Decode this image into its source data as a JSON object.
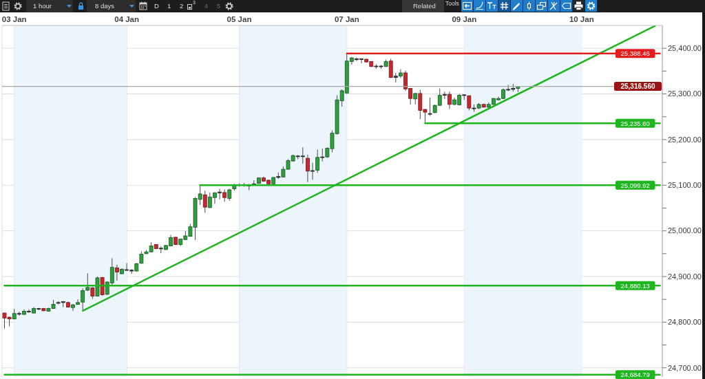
{
  "chart_data": {
    "type": "candlestick",
    "categories": [
      null,
      null,
      "03 Jan",
      null,
      null,
      null,
      null,
      null,
      null,
      null,
      null,
      null,
      null,
      null,
      null,
      null,
      null,
      null,
      null,
      null,
      null,
      null,
      null,
      null,
      null,
      "04 Jan",
      null,
      null,
      null,
      null,
      null,
      null,
      null,
      null,
      null,
      null,
      null,
      null,
      null,
      null,
      null,
      null,
      null,
      null,
      null,
      null,
      null,
      null,
      "05 Jan",
      null,
      null,
      null,
      null,
      null,
      null,
      null,
      null,
      null,
      null,
      null,
      null,
      null,
      null,
      null,
      null,
      null,
      null,
      null,
      null,
      null,
      "07 Jan",
      null,
      null,
      null,
      null,
      null,
      null,
      null,
      null,
      null,
      null,
      null,
      null,
      null,
      null,
      null,
      null,
      null,
      null,
      null,
      null,
      null,
      null,
      null,
      "09 Jan",
      null,
      null,
      null,
      null,
      null,
      null,
      null,
      null,
      null,
      null,
      null,
      null,
      null,
      null,
      null,
      null,
      null,
      null,
      null,
      null,
      null,
      null,
      null,
      "10 Jan",
      null,
      null,
      null,
      null,
      null,
      null,
      null,
      null,
      null,
      null,
      null,
      null,
      null,
      null,
      null,
      null
    ],
    "ohlc": [
      [
        24820,
        24821,
        24786,
        24809
      ],
      [
        24811,
        24812,
        24791,
        24807
      ],
      [
        24807,
        24829,
        24806,
        24819
      ],
      [
        24818,
        24823,
        24814,
        24819
      ],
      [
        24817,
        24828,
        24816,
        24824
      ],
      [
        24823,
        24828,
        24820,
        24824
      ],
      [
        24820,
        24833,
        24819,
        24830
      ],
      [
        24829,
        24831,
        24826,
        24830
      ],
      [
        24830,
        24831,
        24824,
        24825
      ],
      [
        24824,
        24832,
        24823,
        24830
      ],
      [
        24830,
        24849,
        24829,
        24839
      ],
      [
        24842,
        24846,
        24839,
        24843
      ],
      [
        24845,
        24846,
        24833,
        24843
      ],
      [
        24843,
        24845,
        24832,
        24833
      ],
      [
        24832,
        24840,
        24825,
        24838
      ],
      [
        24839,
        24850,
        24838,
        24843
      ],
      [
        24844,
        24874,
        24825,
        24869
      ],
      [
        24870,
        24907,
        24868,
        24876
      ],
      [
        24875,
        24877,
        24851,
        24857
      ],
      [
        24857,
        24900,
        24856,
        24897
      ],
      [
        24898,
        24899,
        24858,
        24860
      ],
      [
        24861,
        24889,
        24860,
        24888
      ],
      [
        24886,
        24940,
        24882,
        24920
      ],
      [
        24919,
        24926,
        24891,
        24910
      ],
      [
        24906,
        24918,
        24905,
        24916
      ],
      [
        24914,
        24929,
        24912,
        24915
      ],
      [
        24914,
        24916,
        24906,
        24912
      ],
      [
        24912,
        24930,
        24911,
        24928
      ],
      [
        24929,
        24955,
        24928,
        24949
      ],
      [
        24950,
        24958,
        24949,
        24954
      ],
      [
        24954,
        24975,
        24953,
        24967
      ],
      [
        24970,
        24971,
        24960,
        24961
      ],
      [
        24961,
        24966,
        24951,
        24962
      ],
      [
        24959,
        24969,
        24958,
        24968
      ],
      [
        24967,
        24991,
        24966,
        24985
      ],
      [
        24986,
        24987,
        24969,
        24970
      ],
      [
        24970,
        24983,
        24967,
        24982
      ],
      [
        24981,
        25000,
        24980,
        24989
      ],
      [
        24988,
        25015,
        24987,
        25009
      ],
      [
        25008,
        25074,
        24980,
        25071
      ],
      [
        25069,
        25099.92,
        25057,
        25081
      ],
      [
        25079,
        25088,
        25040,
        25052
      ],
      [
        25051,
        25084,
        25050,
        25074
      ],
      [
        25073,
        25085,
        25059,
        25083
      ],
      [
        25083,
        25092,
        25069,
        25085
      ],
      [
        25084,
        25091,
        25064,
        25073
      ],
      [
        25071,
        25092,
        25066,
        25090
      ],
      [
        25092,
        25103,
        25088,
        25100
      ],
      [
        25100,
        25104,
        25097,
        25101
      ],
      [
        25101,
        25105,
        25097,
        25100
      ],
      [
        25100,
        25103,
        25089,
        25099
      ],
      [
        25101,
        25111,
        25099,
        25103
      ],
      [
        25104,
        25117,
        25103,
        25116
      ],
      [
        25116,
        25119,
        25108,
        25109
      ],
      [
        25111,
        25112,
        25102,
        25103
      ],
      [
        25103,
        25118,
        25102,
        25117
      ],
      [
        25117,
        25128,
        25114,
        25119
      ],
      [
        25118,
        25141,
        25117,
        25135
      ],
      [
        25135,
        25157,
        25134,
        25154
      ],
      [
        25153,
        25167,
        25152,
        25165
      ],
      [
        25164,
        25166,
        25157,
        25163
      ],
      [
        25163,
        25183,
        25147,
        25164
      ],
      [
        25159,
        25167,
        25107,
        25131
      ],
      [
        25131,
        25149,
        25112,
        25132
      ],
      [
        25133,
        25178,
        25127,
        25161
      ],
      [
        25161,
        25180,
        25152,
        25162
      ],
      [
        25162,
        25183,
        25160,
        25181
      ],
      [
        25180,
        25220,
        25172,
        25214
      ],
      [
        25213,
        25297,
        25211,
        25287
      ],
      [
        25285,
        25310,
        25272,
        25307
      ],
      [
        25302,
        25388.46,
        25300,
        25372
      ],
      [
        25371,
        25381,
        25364,
        25379
      ],
      [
        25377,
        25380,
        25372,
        25375
      ],
      [
        25377,
        25378,
        25367,
        25376
      ],
      [
        25376,
        25377,
        25369,
        25370
      ],
      [
        25371,
        25372,
        25359,
        25360
      ],
      [
        25360,
        25365,
        25355,
        25361
      ],
      [
        25361,
        25363,
        25355,
        25360
      ],
      [
        25360,
        25375,
        25359,
        25371
      ],
      [
        25372,
        25377,
        25335,
        25336
      ],
      [
        25336,
        25346,
        25325,
        25339
      ],
      [
        25339,
        25354,
        25335,
        25346
      ],
      [
        25346,
        25351,
        25307,
        25311
      ],
      [
        25312,
        25313,
        25277,
        25290
      ],
      [
        25289,
        25302,
        25277,
        25301
      ],
      [
        25301,
        25309,
        25245,
        25264
      ],
      [
        25266,
        25267,
        25235.6,
        25260
      ],
      [
        25257,
        25292,
        25252,
        25256
      ],
      [
        25259,
        25277,
        25258,
        25275
      ],
      [
        25275,
        25312,
        25274,
        25297
      ],
      [
        25297,
        25305,
        25289,
        25299
      ],
      [
        25299,
        25305,
        25267,
        25277
      ],
      [
        25277,
        25292,
        25275,
        25287
      ],
      [
        25276,
        25300,
        25275,
        25297
      ],
      [
        25298,
        25299,
        25287,
        25297
      ],
      [
        25296,
        25297,
        25264,
        25269
      ],
      [
        25268,
        25277,
        25261,
        25269
      ],
      [
        25269,
        25280,
        25267,
        25277
      ],
      [
        25277,
        25279,
        25270,
        25271
      ],
      [
        25271,
        25281,
        25269,
        25277
      ],
      [
        25277,
        25291,
        25276,
        25290
      ],
      [
        25287,
        25294,
        25286,
        25290
      ],
      [
        25290,
        25312,
        25289,
        25309
      ],
      [
        25309,
        25320,
        25306,
        25310
      ],
      [
        25310,
        25322,
        25305,
        25312
      ],
      [
        25312,
        25317,
        25304,
        25316.56
      ],
      null,
      null,
      null,
      null,
      null,
      null,
      null,
      null,
      null,
      null,
      null,
      null,
      null,
      null,
      null,
      null,
      null,
      null,
      null,
      null,
      null,
      null,
      null,
      null,
      null,
      null,
      null,
      null,
      null
    ],
    "colors": [
      "#c8282d",
      "#c8282d",
      "#2e9e3e",
      "#404040",
      "#2e9e3e",
      "#404040",
      "#2e9e3e",
      "#404040",
      "#c8282d",
      "#2e9e3e",
      "#2e9e3e",
      "#404040",
      "#404040",
      "#c8282d",
      "#2e9e3e",
      "#2e9e3e",
      "#2e9e3e",
      "#2e9e3e",
      "#c8282d",
      "#2e9e3e",
      "#c8282d",
      "#2e9e3e",
      "#2e9e3e",
      "#c8282d",
      "#2e9e3e",
      "#404040",
      "#404040",
      "#2e9e3e",
      "#2e9e3e",
      "#2e9e3e",
      "#2e9e3e",
      "#c8282d",
      "#404040",
      "#2e9e3e",
      "#2e9e3e",
      "#c8282d",
      "#2e9e3e",
      "#2e9e3e",
      "#2e9e3e",
      "#2e9e3e",
      "#2e9e3e",
      "#c8282d",
      "#2e9e3e",
      "#2e9e3e",
      "#404040",
      "#c8282d",
      "#2e9e3e",
      "#2e9e3e",
      "#404040",
      "#404040",
      "#404040",
      "#404040",
      "#2e9e3e",
      "#c8282d",
      "#c8282d",
      "#2e9e3e",
      "#404040",
      "#2e9e3e",
      "#2e9e3e",
      "#2e9e3e",
      "#404040",
      "#404040",
      "#c8282d",
      "#404040",
      "#2e9e3e",
      "#404040",
      "#2e9e3e",
      "#2e9e3e",
      "#2e9e3e",
      "#2e9e3e",
      "#2e9e3e",
      "#2e9e3e",
      "#404040",
      "#404040",
      "#c8282d",
      "#c8282d",
      "#404040",
      "#404040",
      "#2e9e3e",
      "#c8282d",
      "#404040",
      "#2e9e3e",
      "#c8282d",
      "#c8282d",
      "#2e9e3e",
      "#c8282d",
      "#c8282d",
      "#404040",
      "#2e9e3e",
      "#2e9e3e",
      "#404040",
      "#c8282d",
      "#2e9e3e",
      "#2e9e3e",
      "#404040",
      "#c8282d",
      "#404040",
      "#2e9e3e",
      "#c8282d",
      "#2e9e3e",
      "#2e9e3e",
      "#2e9e3e",
      "#2e9e3e",
      "#404040",
      "#404040",
      "#2e9e3e",
      null,
      null,
      null,
      null,
      null,
      null,
      null,
      null,
      null,
      null,
      null,
      null,
      null,
      null,
      null,
      null,
      null,
      null,
      null,
      null,
      null,
      null,
      null,
      null,
      null,
      null,
      null,
      null,
      null
    ],
    "series": [
      {
        "type": "line",
        "color": "#1fb51f",
        "values": [
          null,
          null,
          null,
          null,
          null,
          null,
          null,
          null,
          null,
          null,
          null,
          null,
          null,
          null,
          null,
          null,
          24825,
          null,
          null,
          null,
          null,
          null,
          null,
          null,
          null,
          null,
          null,
          null,
          null,
          null,
          null,
          null,
          null,
          null,
          null,
          null,
          null,
          null,
          null,
          null,
          null,
          null,
          null,
          null,
          null,
          null,
          null,
          null,
          null,
          null,
          null,
          null,
          null,
          null,
          null,
          null,
          null,
          null,
          null,
          null,
          null,
          null,
          null,
          null,
          null,
          null,
          null,
          null,
          null,
          null,
          null,
          null,
          null,
          null,
          null,
          null,
          null,
          null,
          null,
          null,
          null,
          null,
          null,
          null,
          null,
          null,
          null,
          null,
          null,
          null,
          null,
          null,
          null,
          null,
          null,
          null,
          null,
          null,
          null,
          null,
          null,
          null,
          null,
          null,
          null,
          null,
          null,
          null,
          null,
          null,
          null,
          null,
          null,
          null,
          null,
          null,
          null,
          null,
          null,
          null,
          null,
          null,
          null,
          null,
          null,
          null,
          null,
          null,
          null,
          null,
          null,
          null,
          null,
          25449,
          null
        ]
      },
      {
        "type": "line",
        "color": "#e41c1c",
        "values": [
          null,
          null,
          null,
          null,
          null,
          null,
          null,
          null,
          null,
          null,
          null,
          null,
          null,
          null,
          null,
          null,
          null,
          null,
          null,
          null,
          null,
          null,
          null,
          null,
          null,
          null,
          null,
          null,
          null,
          null,
          null,
          null,
          null,
          null,
          null,
          null,
          null,
          null,
          null,
          null,
          null,
          null,
          null,
          null,
          null,
          null,
          null,
          null,
          null,
          null,
          null,
          null,
          null,
          null,
          null,
          null,
          null,
          null,
          null,
          null,
          null,
          null,
          null,
          null,
          null,
          null,
          null,
          null,
          null,
          null,
          25388.46,
          null,
          null,
          null,
          null,
          null,
          null,
          null,
          null,
          null,
          null,
          null,
          null,
          null,
          null,
          null,
          null,
          null,
          null,
          null,
          null,
          null,
          null,
          null,
          null,
          null,
          null,
          null,
          null,
          null,
          null,
          null,
          null,
          null,
          null,
          null,
          null,
          null,
          null,
          null,
          null,
          null,
          null,
          null,
          null,
          null,
          null,
          null,
          null,
          null,
          null,
          null,
          null,
          null,
          null,
          null,
          null,
          null,
          null,
          null,
          null,
          null,
          null,
          null,
          25388.46
        ],
        "value_labels": [
          null,
          null,
          null,
          null,
          null,
          null,
          null,
          null,
          null,
          null,
          null,
          null,
          null,
          null,
          null,
          null,
          null,
          null,
          null,
          null,
          null,
          null,
          null,
          null,
          null,
          null,
          null,
          null,
          null,
          null,
          null,
          null,
          null,
          null,
          null,
          null,
          null,
          null,
          null,
          null,
          null,
          null,
          null,
          null,
          null,
          null,
          null,
          null,
          null,
          null,
          null,
          null,
          null,
          null,
          null,
          null,
          null,
          null,
          null,
          null,
          null,
          null,
          null,
          null,
          null,
          null,
          null,
          null,
          null,
          null,
          null,
          null,
          null,
          null,
          null,
          null,
          null,
          null,
          null,
          null,
          null,
          null,
          null,
          null,
          null,
          null,
          null,
          null,
          null,
          null,
          null,
          null,
          null,
          null,
          null,
          null,
          null,
          null,
          null,
          null,
          null,
          null,
          null,
          null,
          null,
          null,
          null,
          null,
          null,
          null,
          null,
          null,
          null,
          null,
          null,
          null,
          null,
          null,
          null,
          null,
          null,
          null,
          null,
          null,
          null,
          null,
          null,
          null,
          null,
          null,
          null,
          null,
          null,
          null,
          "25,388.46"
        ]
      },
      {
        "type": "line",
        "color": "#1fb51f",
        "values": [
          null,
          null,
          null,
          null,
          null,
          null,
          null,
          null,
          null,
          null,
          null,
          null,
          null,
          null,
          null,
          null,
          null,
          null,
          null,
          null,
          null,
          null,
          null,
          null,
          null,
          null,
          null,
          null,
          null,
          null,
          null,
          null,
          null,
          null,
          null,
          null,
          null,
          null,
          null,
          null,
          null,
          null,
          null,
          null,
          null,
          null,
          null,
          null,
          null,
          null,
          null,
          null,
          null,
          null,
          null,
          null,
          null,
          null,
          null,
          null,
          null,
          null,
          null,
          null,
          null,
          null,
          null,
          null,
          null,
          null,
          null,
          null,
          null,
          null,
          null,
          null,
          null,
          null,
          null,
          null,
          null,
          null,
          null,
          null,
          null,
          null,
          25235.6,
          null,
          null,
          null,
          null,
          null,
          null,
          null,
          null,
          null,
          null,
          null,
          null,
          null,
          null,
          null,
          null,
          null,
          null,
          null,
          null,
          null,
          null,
          null,
          null,
          null,
          null,
          null,
          null,
          null,
          null,
          null,
          null,
          null,
          null,
          null,
          null,
          null,
          null,
          null,
          null,
          null,
          null,
          null,
          null,
          null,
          null,
          null,
          25235.6
        ],
        "value_labels": [
          null,
          null,
          null,
          null,
          null,
          null,
          null,
          null,
          null,
          null,
          null,
          null,
          null,
          null,
          null,
          null,
          null,
          null,
          null,
          null,
          null,
          null,
          null,
          null,
          null,
          null,
          null,
          null,
          null,
          null,
          null,
          null,
          null,
          null,
          null,
          null,
          null,
          null,
          null,
          null,
          null,
          null,
          null,
          null,
          null,
          null,
          null,
          null,
          null,
          null,
          null,
          null,
          null,
          null,
          null,
          null,
          null,
          null,
          null,
          null,
          null,
          null,
          null,
          null,
          null,
          null,
          null,
          null,
          null,
          null,
          null,
          null,
          null,
          null,
          null,
          null,
          null,
          null,
          null,
          null,
          null,
          null,
          null,
          null,
          null,
          null,
          null,
          null,
          null,
          null,
          null,
          null,
          null,
          null,
          null,
          null,
          null,
          null,
          null,
          null,
          null,
          null,
          null,
          null,
          null,
          null,
          null,
          null,
          null,
          null,
          null,
          null,
          null,
          null,
          null,
          null,
          null,
          null,
          null,
          null,
          null,
          null,
          null,
          null,
          null,
          null,
          null,
          null,
          null,
          null,
          null,
          null,
          null,
          null,
          "25,235.60"
        ]
      },
      {
        "type": "line",
        "color": "#1fb51f",
        "values": [
          null,
          null,
          null,
          null,
          null,
          null,
          null,
          null,
          null,
          null,
          null,
          null,
          null,
          null,
          null,
          null,
          null,
          null,
          null,
          null,
          null,
          null,
          null,
          null,
          null,
          null,
          null,
          null,
          null,
          null,
          null,
          null,
          null,
          null,
          null,
          null,
          null,
          null,
          null,
          null,
          25099.92,
          null,
          null,
          null,
          null,
          null,
          null,
          null,
          null,
          null,
          null,
          null,
          null,
          null,
          null,
          null,
          null,
          null,
          null,
          null,
          null,
          null,
          null,
          null,
          null,
          null,
          null,
          null,
          null,
          null,
          null,
          null,
          null,
          null,
          null,
          null,
          null,
          null,
          null,
          null,
          null,
          null,
          null,
          null,
          null,
          null,
          null,
          null,
          null,
          null,
          null,
          null,
          null,
          null,
          null,
          null,
          null,
          null,
          null,
          null,
          null,
          null,
          null,
          null,
          null,
          null,
          null,
          null,
          null,
          null,
          null,
          null,
          null,
          null,
          null,
          null,
          null,
          null,
          null,
          null,
          null,
          null,
          null,
          null,
          null,
          null,
          null,
          null,
          null,
          null,
          null,
          null,
          null,
          null,
          25099.92
        ],
        "value_labels": [
          null,
          null,
          null,
          null,
          null,
          null,
          null,
          null,
          null,
          null,
          null,
          null,
          null,
          null,
          null,
          null,
          null,
          null,
          null,
          null,
          null,
          null,
          null,
          null,
          null,
          null,
          null,
          null,
          null,
          null,
          null,
          null,
          null,
          null,
          null,
          null,
          null,
          null,
          null,
          null,
          null,
          null,
          null,
          null,
          null,
          null,
          null,
          null,
          null,
          null,
          null,
          null,
          null,
          null,
          null,
          null,
          null,
          null,
          null,
          null,
          null,
          null,
          null,
          null,
          null,
          null,
          null,
          null,
          null,
          null,
          null,
          null,
          null,
          null,
          null,
          null,
          null,
          null,
          null,
          null,
          null,
          null,
          null,
          null,
          null,
          null,
          null,
          null,
          null,
          null,
          null,
          null,
          null,
          null,
          null,
          null,
          null,
          null,
          null,
          null,
          null,
          null,
          null,
          null,
          null,
          null,
          null,
          null,
          null,
          null,
          null,
          null,
          null,
          null,
          null,
          null,
          null,
          null,
          null,
          null,
          null,
          null,
          null,
          null,
          null,
          null,
          null,
          null,
          null,
          null,
          null,
          null,
          null,
          null,
          "25,099.92"
        ]
      },
      {
        "type": "line",
        "color": "#1fb51f",
        "values": [
          24880.13,
          null,
          null,
          null,
          null,
          null,
          null,
          null,
          null,
          null,
          null,
          null,
          null,
          null,
          null,
          null,
          null,
          null,
          null,
          null,
          null,
          null,
          null,
          null,
          null,
          null,
          null,
          null,
          null,
          null,
          null,
          null,
          null,
          null,
          null,
          null,
          null,
          null,
          null,
          null,
          null,
          null,
          null,
          null,
          null,
          null,
          null,
          null,
          null,
          null,
          null,
          null,
          null,
          null,
          null,
          null,
          null,
          null,
          null,
          null,
          null,
          null,
          null,
          null,
          null,
          null,
          null,
          null,
          null,
          null,
          null,
          null,
          null,
          null,
          null,
          null,
          null,
          null,
          null,
          null,
          null,
          null,
          null,
          null,
          null,
          null,
          null,
          null,
          null,
          null,
          null,
          null,
          null,
          null,
          null,
          null,
          null,
          null,
          null,
          null,
          null,
          null,
          null,
          null,
          null,
          null,
          null,
          null,
          null,
          null,
          null,
          null,
          null,
          null,
          null,
          null,
          null,
          null,
          null,
          null,
          null,
          null,
          null,
          null,
          null,
          null,
          null,
          null,
          null,
          null,
          null,
          null,
          null,
          null,
          24880.13
        ],
        "value_labels": [
          null,
          null,
          null,
          null,
          null,
          null,
          null,
          null,
          null,
          null,
          null,
          null,
          null,
          null,
          null,
          null,
          null,
          null,
          null,
          null,
          null,
          null,
          null,
          null,
          null,
          null,
          null,
          null,
          null,
          null,
          null,
          null,
          null,
          null,
          null,
          null,
          null,
          null,
          null,
          null,
          null,
          null,
          null,
          null,
          null,
          null,
          null,
          null,
          null,
          null,
          null,
          null,
          null,
          null,
          null,
          null,
          null,
          null,
          null,
          null,
          null,
          null,
          null,
          null,
          null,
          null,
          null,
          null,
          null,
          null,
          null,
          null,
          null,
          null,
          null,
          null,
          null,
          null,
          null,
          null,
          null,
          null,
          null,
          null,
          null,
          null,
          null,
          null,
          null,
          null,
          null,
          null,
          null,
          null,
          null,
          null,
          null,
          null,
          null,
          null,
          null,
          null,
          null,
          null,
          null,
          null,
          null,
          null,
          null,
          null,
          null,
          null,
          null,
          null,
          null,
          null,
          null,
          null,
          null,
          null,
          null,
          null,
          null,
          null,
          null,
          null,
          null,
          null,
          null,
          null,
          null,
          null,
          null,
          null,
          "24,880.13"
        ]
      },
      {
        "type": "line",
        "color": "#1fb51f",
        "values": [
          24684.79,
          null,
          null,
          null,
          null,
          null,
          null,
          null,
          null,
          null,
          null,
          null,
          null,
          null,
          null,
          null,
          null,
          null,
          null,
          null,
          null,
          null,
          null,
          null,
          null,
          null,
          null,
          null,
          null,
          null,
          null,
          null,
          null,
          null,
          null,
          null,
          null,
          null,
          null,
          null,
          null,
          null,
          null,
          null,
          null,
          null,
          null,
          null,
          null,
          null,
          null,
          null,
          null,
          null,
          null,
          null,
          null,
          null,
          null,
          null,
          null,
          null,
          null,
          null,
          null,
          null,
          null,
          null,
          null,
          null,
          null,
          null,
          null,
          null,
          null,
          null,
          null,
          null,
          null,
          null,
          null,
          null,
          null,
          null,
          null,
          null,
          null,
          null,
          null,
          null,
          null,
          null,
          null,
          null,
          null,
          null,
          null,
          null,
          null,
          null,
          null,
          null,
          null,
          null,
          null,
          null,
          null,
          null,
          null,
          null,
          null,
          null,
          null,
          null,
          null,
          null,
          null,
          null,
          null,
          null,
          null,
          null,
          null,
          null,
          null,
          null,
          null,
          null,
          null,
          null,
          null,
          null,
          null,
          null,
          24684.79
        ],
        "value_labels": [
          null,
          null,
          null,
          null,
          null,
          null,
          null,
          null,
          null,
          null,
          null,
          null,
          null,
          null,
          null,
          null,
          null,
          null,
          null,
          null,
          null,
          null,
          null,
          null,
          null,
          null,
          null,
          null,
          null,
          null,
          null,
          null,
          null,
          null,
          null,
          null,
          null,
          null,
          null,
          null,
          null,
          null,
          null,
          null,
          null,
          null,
          null,
          null,
          null,
          null,
          null,
          null,
          null,
          null,
          null,
          null,
          null,
          null,
          null,
          null,
          null,
          null,
          null,
          null,
          null,
          null,
          null,
          null,
          null,
          null,
          null,
          null,
          null,
          null,
          null,
          null,
          null,
          null,
          null,
          null,
          null,
          null,
          null,
          null,
          null,
          null,
          null,
          null,
          null,
          null,
          null,
          null,
          null,
          null,
          null,
          null,
          null,
          null,
          null,
          null,
          null,
          null,
          null,
          null,
          null,
          null,
          null,
          null,
          null,
          null,
          null,
          null,
          null,
          null,
          null,
          null,
          null,
          null,
          null,
          null,
          null,
          null,
          null,
          null,
          null,
          null,
          null,
          null,
          null,
          null,
          null,
          null,
          null,
          null,
          "24,684.79"
        ]
      }
    ],
    "ref_lines": [
      {
        "axis": "y",
        "value": 25316.56,
        "label": "25,316.560",
        "color": "#a8a8a8"
      }
    ],
    "bands": [
      {
        "axis": "x",
        "from": "03 Jan",
        "to": "04 Jan",
        "color": "#edf5fc"
      },
      {
        "axis": "x",
        "from": "05 Jan",
        "to": "07 Jan",
        "color": "#edf5fc"
      },
      {
        "axis": "x",
        "from": "09 Jan",
        "to": "10 Jan",
        "color": "#edf5fc"
      }
    ],
    "ylim": [
      24680,
      25450
    ],
    "yticks": [
      {
        "value": 24700,
        "label": "24,700.00"
      },
      {
        "value": 24750,
        "label": null
      },
      {
        "value": 24800,
        "label": "24,800.00"
      },
      {
        "value": 24850,
        "label": null
      },
      {
        "value": 24900,
        "label": "24,900.00"
      },
      {
        "value": 24950,
        "label": null
      },
      {
        "value": 25000,
        "label": "25,000.00"
      },
      {
        "value": 25050,
        "label": null
      },
      {
        "value": 25100,
        "label": "25,100.00"
      },
      {
        "value": 25150,
        "label": null
      },
      {
        "value": 25200,
        "label": "25,200.00"
      },
      {
        "value": 25250,
        "label": null
      },
      {
        "value": 25300,
        "label": "25,300.00"
      },
      {
        "value": 25350,
        "label": null
      },
      {
        "value": 25400,
        "label": "25,400.00"
      }
    ],
    "grid": true,
    "marker": "none",
    "annotations": [
      "1 hour",
      "8 days",
      "D",
      "1",
      "2",
      "3",
      "4",
      "5",
      "Related",
      "Tools"
    ]
  }
}
